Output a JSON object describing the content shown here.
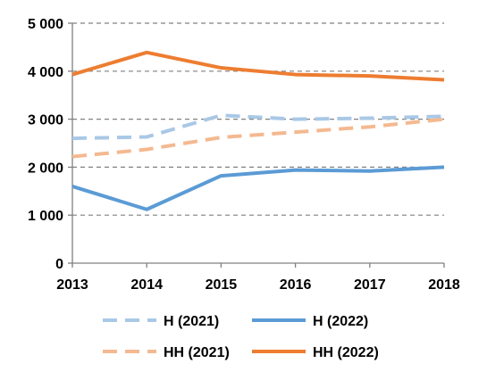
{
  "chart_data": {
    "type": "line",
    "title": "",
    "xlabel": "",
    "ylabel": "",
    "x": [
      2013,
      2014,
      2015,
      2016,
      2017,
      2018
    ],
    "x_tick_labels": [
      "2013",
      "2014",
      "2015",
      "2016",
      "2017",
      "2018"
    ],
    "ylim": [
      0,
      5000
    ],
    "y_ticks": [
      0,
      1000,
      2000,
      3000,
      4000,
      5000
    ],
    "y_tick_labels": [
      "0",
      "1 000",
      "2 000",
      "3 000",
      "4 000",
      "5 000"
    ],
    "grid": true,
    "legend_position": "bottom",
    "series": [
      {
        "name": "H (2021)",
        "values": [
          2600,
          2630,
          3080,
          3000,
          3020,
          3060
        ],
        "color": "#a9c8e6",
        "dashed": true
      },
      {
        "name": "H (2022)",
        "values": [
          1600,
          1120,
          1820,
          1940,
          1920,
          2000
        ],
        "color": "#5b9bd5",
        "dashed": false
      },
      {
        "name": "HH (2021)",
        "values": [
          2220,
          2370,
          2620,
          2730,
          2840,
          3000
        ],
        "color": "#f4b990",
        "dashed": true
      },
      {
        "name": "HH (2022)",
        "values": [
          3930,
          4390,
          4070,
          3930,
          3900,
          3820
        ],
        "color": "#ed7d31",
        "dashed": false
      }
    ]
  }
}
